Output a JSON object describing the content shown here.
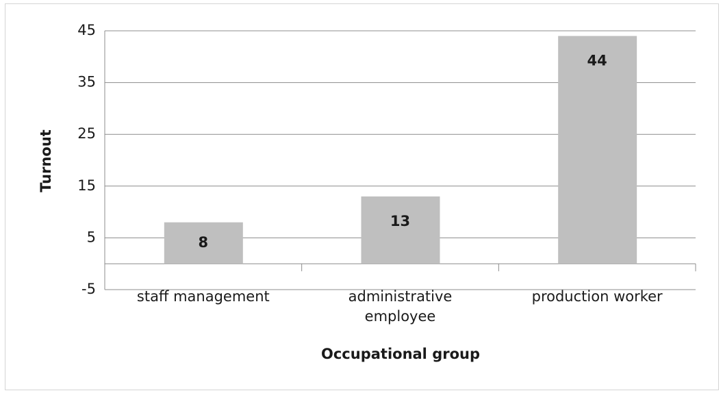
{
  "chart_data": {
    "type": "bar",
    "categories": [
      "staff management",
      "administrative employee",
      "production worker"
    ],
    "values": [
      8,
      13,
      44
    ],
    "color": "#bfbfbf",
    "ylim": [
      -5,
      45
    ],
    "yticks": [
      -5,
      5,
      15,
      25,
      35,
      45
    ],
    "grid": true,
    "y_label": "Turnout",
    "x_label": "Occupational group"
  }
}
